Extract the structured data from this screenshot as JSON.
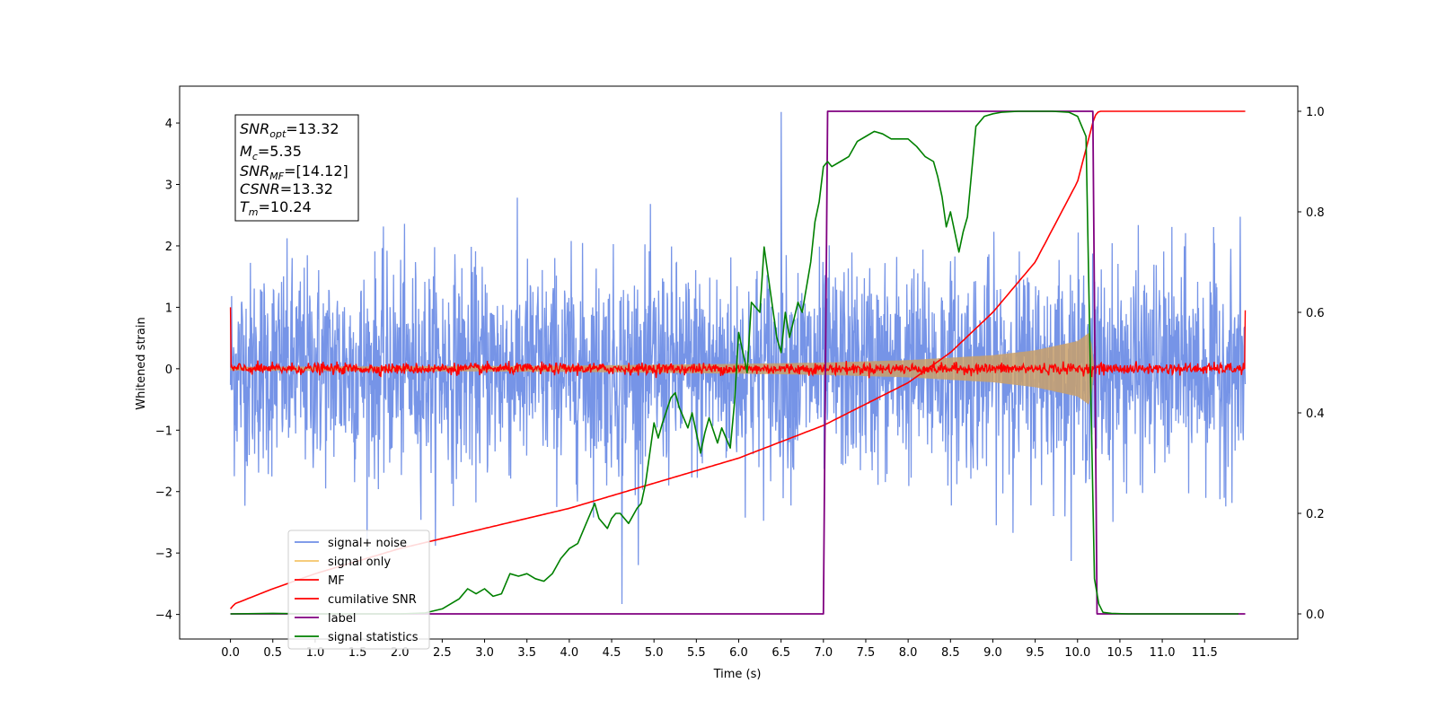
{
  "chart_data": {
    "type": "line",
    "xlabel": "Time (s)",
    "ylabel": "Whitened strain",
    "xlim": [
      -0.6,
      12.6
    ],
    "ylim": [
      -4.4,
      4.6
    ],
    "y2lim": [
      -0.05,
      1.05
    ],
    "x_ticks": [
      "0.0",
      "0.5",
      "1.0",
      "1.5",
      "2.0",
      "2.5",
      "3.0",
      "3.5",
      "4.0",
      "4.5",
      "5.0",
      "5.5",
      "6.0",
      "6.5",
      "7.0",
      "7.5",
      "8.0",
      "8.5",
      "9.0",
      "9.5",
      "10.0",
      "10.5",
      "11.0",
      "11.5"
    ],
    "y_ticks": [
      "4",
      "3",
      "2",
      "1",
      "0",
      "−1",
      "−2",
      "−3",
      "−4"
    ],
    "y2_ticks": [
      "1.0",
      "0.8",
      "0.6",
      "0.4",
      "0.2",
      "0.0"
    ],
    "legend_position": "lower-left",
    "info_box": {
      "snr_opt": {
        "symbol": "SNR",
        "sub": "opt",
        "value": "=13.32"
      },
      "mc": {
        "symbol": "M",
        "sub": "c",
        "value": "=5.35"
      },
      "snr_mf": {
        "symbol": "SNR",
        "sub": "MF",
        "value": "=[14.12]"
      },
      "csnr": {
        "symbol": "CSNR",
        "sub": "",
        "value": "=13.32"
      },
      "tm": {
        "symbol": "T",
        "sub": "m",
        "value": "=10.24"
      }
    },
    "series": [
      {
        "name": "signal+ noise",
        "color": "#6f8ee6",
        "axis": "left",
        "description_values": {
          "x_range": [
            0,
            11.98
          ],
          "typical_band": [
            -1.5,
            1.5
          ],
          "max": 4.18,
          "min": -3.83
        }
      },
      {
        "name": "signal only",
        "color": "#f5c46a",
        "axis": "left",
        "envelope": {
          "x": [
            0,
            2,
            4,
            6,
            7,
            8,
            9,
            9.5,
            10,
            10.15,
            10.2
          ],
          "amplitude": [
            0.03,
            0.04,
            0.05,
            0.08,
            0.1,
            0.14,
            0.22,
            0.3,
            0.45,
            0.6,
            0.0
          ]
        }
      },
      {
        "name": "MF",
        "color": "#ff0000",
        "axis": "left",
        "description_values": {
          "x_range": [
            0,
            11.98
          ],
          "typical_band": [
            -0.12,
            0.12
          ],
          "start": 1.0,
          "end": 0.95
        }
      },
      {
        "name": "cumilative SNR",
        "color": "#ff0000",
        "axis": "right",
        "x": [
          0,
          0.05,
          0.5,
          1,
          2,
          3,
          4,
          5,
          6,
          7,
          8,
          8.5,
          9,
          9.5,
          10,
          10.2,
          10.25,
          11,
          11.98
        ],
        "y": [
          0.01,
          0.02,
          0.05,
          0.08,
          0.13,
          0.17,
          0.21,
          0.26,
          0.31,
          0.375,
          0.46,
          0.52,
          0.6,
          0.7,
          0.86,
          0.99,
          1.0,
          1.0,
          1.0
        ]
      },
      {
        "name": "label",
        "color": "#800080",
        "axis": "right",
        "x": [
          0,
          7.0,
          7.05,
          10.18,
          10.23,
          11.98
        ],
        "y": [
          0,
          0,
          1,
          1,
          0,
          0
        ]
      },
      {
        "name": "signal statistics",
        "color": "#008000",
        "axis": "right",
        "x": [
          0,
          0.5,
          1.0,
          1.5,
          2.0,
          2.3,
          2.5,
          2.7,
          2.8,
          2.9,
          3.0,
          3.1,
          3.2,
          3.3,
          3.4,
          3.5,
          3.6,
          3.7,
          3.8,
          3.9,
          4.0,
          4.1,
          4.2,
          4.3,
          4.35,
          4.45,
          4.5,
          4.55,
          4.6,
          4.7,
          4.8,
          4.85,
          4.9,
          5.0,
          5.05,
          5.1,
          5.2,
          5.25,
          5.3,
          5.4,
          5.45,
          5.55,
          5.6,
          5.65,
          5.75,
          5.8,
          5.9,
          5.95,
          6.0,
          6.1,
          6.15,
          6.25,
          6.3,
          6.35,
          6.45,
          6.5,
          6.55,
          6.6,
          6.7,
          6.75,
          6.85,
          6.9,
          6.95,
          7.0,
          7.05,
          7.1,
          7.2,
          7.3,
          7.4,
          7.5,
          7.6,
          7.7,
          7.8,
          8.0,
          8.1,
          8.2,
          8.3,
          8.35,
          8.4,
          8.45,
          8.5,
          8.55,
          8.6,
          8.65,
          8.7,
          8.8,
          8.9,
          9.0,
          9.1,
          9.3,
          9.5,
          9.7,
          9.9,
          10.0,
          10.05,
          10.1,
          10.15,
          10.2,
          10.25,
          10.3,
          10.4,
          10.6,
          11.0,
          11.5,
          11.9
        ],
        "y": [
          0.0,
          0.001,
          0.0,
          0.0,
          0.0,
          0.002,
          0.01,
          0.03,
          0.05,
          0.04,
          0.05,
          0.035,
          0.04,
          0.08,
          0.075,
          0.08,
          0.07,
          0.065,
          0.08,
          0.11,
          0.13,
          0.14,
          0.18,
          0.22,
          0.19,
          0.17,
          0.19,
          0.2,
          0.2,
          0.18,
          0.21,
          0.22,
          0.26,
          0.38,
          0.35,
          0.38,
          0.43,
          0.44,
          0.41,
          0.37,
          0.4,
          0.32,
          0.36,
          0.39,
          0.34,
          0.37,
          0.33,
          0.42,
          0.56,
          0.48,
          0.62,
          0.6,
          0.73,
          0.67,
          0.55,
          0.52,
          0.6,
          0.55,
          0.62,
          0.6,
          0.7,
          0.78,
          0.82,
          0.89,
          0.9,
          0.89,
          0.9,
          0.91,
          0.94,
          0.95,
          0.96,
          0.955,
          0.945,
          0.945,
          0.93,
          0.91,
          0.9,
          0.87,
          0.83,
          0.77,
          0.8,
          0.76,
          0.72,
          0.76,
          0.79,
          0.97,
          0.99,
          0.995,
          0.998,
          1.0,
          1.0,
          1.0,
          0.998,
          0.99,
          0.97,
          0.95,
          0.5,
          0.07,
          0.02,
          0.003,
          0.001,
          0.0,
          0.0,
          0.0,
          0.0
        ]
      }
    ]
  }
}
